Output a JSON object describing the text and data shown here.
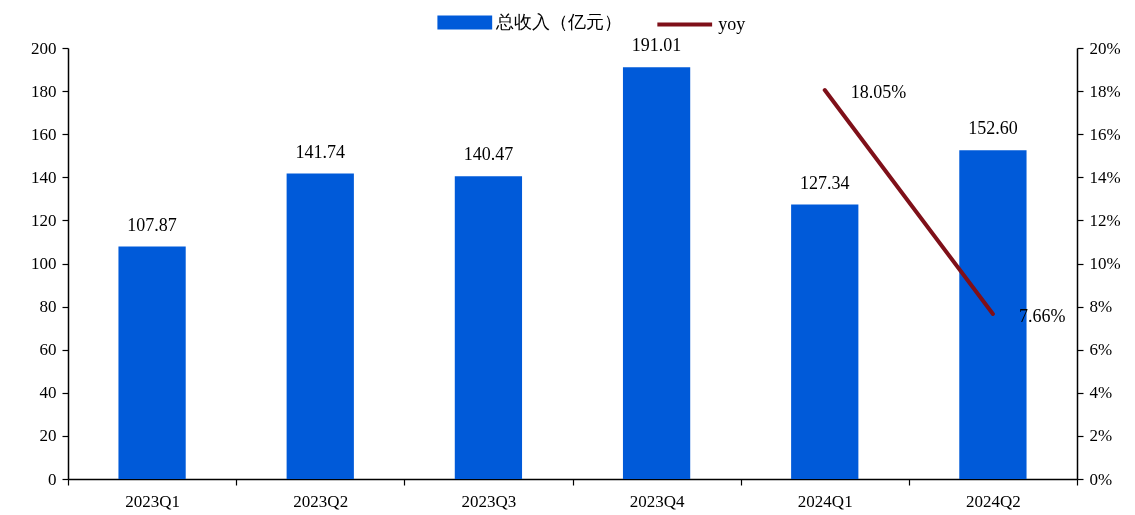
{
  "chart_data": {
    "type": "bar",
    "categories": [
      "2023Q1",
      "2023Q2",
      "2023Q3",
      "2023Q4",
      "2024Q1",
      "2024Q2"
    ],
    "series": [
      {
        "name": "总收入（亿元）",
        "color": "#005ad9",
        "values": [
          107.87,
          141.74,
          140.47,
          191.01,
          127.34,
          152.6
        ],
        "value_labels": [
          "107.87",
          "141.74",
          "140.47",
          "191.01",
          "127.34",
          "152.60"
        ]
      },
      {
        "name": "yoy",
        "type": "line",
        "axis": "y2",
        "color": "#7f1019",
        "values": [
          null,
          null,
          null,
          null,
          18.05,
          7.66
        ],
        "value_labels": [
          null,
          null,
          null,
          null,
          "18.05%",
          "7.66%"
        ]
      }
    ],
    "ylim": [
      0,
      200
    ],
    "yticks": [
      0,
      20,
      40,
      60,
      80,
      100,
      120,
      140,
      160,
      180,
      200
    ],
    "y2lim": [
      0,
      20
    ],
    "y2ticks": [
      {
        "value": 0,
        "label": "0%"
      },
      {
        "value": 2,
        "label": "2%"
      },
      {
        "value": 4,
        "label": "4%"
      },
      {
        "value": 6,
        "label": "6%"
      },
      {
        "value": 8,
        "label": "8%"
      },
      {
        "value": 10,
        "label": "10%"
      },
      {
        "value": 12,
        "label": "12%"
      },
      {
        "value": 14,
        "label": "14%"
      },
      {
        "value": 16,
        "label": "16%"
      },
      {
        "value": 18,
        "label": "18%"
      },
      {
        "value": 20,
        "label": "20%"
      }
    ],
    "legend": "top"
  }
}
